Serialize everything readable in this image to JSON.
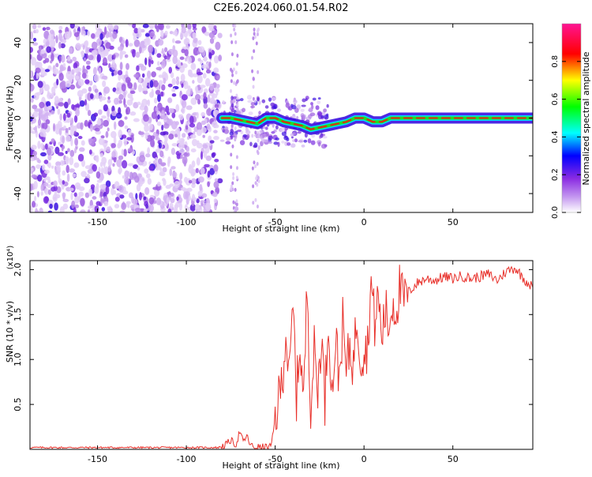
{
  "title": "C2E6.2024.060.01.54.R02",
  "chart_data": [
    {
      "type": "heatmap",
      "xlabel": "Height of straight line (km)",
      "ylabel": "Frequency (Hz)",
      "xlim": [
        -188,
        95
      ],
      "ylim": [
        -50,
        50
      ],
      "x_ticks": [
        -150,
        -100,
        -50,
        0,
        50
      ],
      "y_ticks": [
        -40,
        -20,
        0,
        20,
        40
      ],
      "ridge": {
        "x": [
          -80,
          -75,
          -70,
          -65,
          -60,
          -55,
          -50,
          -45,
          -40,
          -35,
          -30,
          -25,
          -20,
          -15,
          -10,
          -5,
          0,
          5,
          10,
          15,
          20,
          40,
          60,
          80,
          95
        ],
        "freq": [
          0,
          0,
          -1,
          -2,
          -3,
          0,
          0,
          -2,
          -3,
          -4,
          -6,
          -5,
          -4,
          -3,
          -2,
          0,
          0,
          -2,
          -2,
          0,
          0,
          0,
          0,
          0,
          0
        ]
      },
      "colorbar": {
        "label": "Normalized spectral amplitude",
        "range": [
          0,
          1
        ],
        "ticks": [
          "0.0",
          "0.2",
          "0.4",
          "0.6",
          "0.8"
        ],
        "colors": [
          "#ffffff",
          "#8a2be2",
          "#0000ff",
          "#00ffff",
          "#00ff00",
          "#ffff00",
          "#ff0000",
          "#ff1493"
        ]
      }
    },
    {
      "type": "line",
      "xlabel": "Height of straight line (km)",
      "ylabel": "SNR (10 * v/v)",
      "scale_label": "(x10⁴)",
      "xlim": [
        -188,
        95
      ],
      "ylim": [
        0,
        2.1
      ],
      "x_ticks": [
        -150,
        -100,
        -50,
        0,
        50
      ],
      "y_ticks": [
        "0.5",
        "1.0",
        "1.5",
        "2.0"
      ],
      "line_color": "#e8302a",
      "series": [
        {
          "x": [
            -188,
            -150,
            -120,
            -100,
            -82,
            -78,
            -75,
            -72,
            -70,
            -68,
            -66,
            -64,
            -62,
            -60,
            -58,
            -56,
            -54,
            -52,
            -50,
            -48,
            -46,
            -44,
            -42,
            -40,
            -38,
            -36,
            -34,
            -32,
            -30,
            -28,
            -26,
            -24,
            -22,
            -20,
            -18,
            -16,
            -14,
            -12,
            -10,
            -8,
            -6,
            -4,
            -2,
            0,
            2,
            4,
            6,
            8,
            10,
            12,
            14,
            16,
            18,
            20,
            22,
            25,
            30,
            35,
            40,
            45,
            50,
            55,
            60,
            65,
            70,
            75,
            80,
            85,
            90,
            95
          ],
          "y": [
            0.02,
            0.02,
            0.02,
            0.02,
            0.02,
            0.05,
            0.1,
            0.05,
            0.2,
            0.08,
            0.15,
            0.05,
            0.02,
            0.03,
            0.02,
            0.03,
            0.02,
            0.05,
            0.35,
            0.55,
            0.8,
            1.3,
            0.75,
            1.6,
            0.6,
            1.2,
            0.5,
            1.85,
            0.5,
            1.1,
            0.65,
            1.3,
            0.55,
            1.5,
            0.6,
            1.25,
            0.8,
            1.4,
            0.85,
            1.15,
            0.95,
            1.5,
            1.05,
            1.1,
            1.15,
            1.85,
            1.4,
            1.7,
            1.25,
            1.55,
            1.35,
            1.65,
            1.55,
            1.8,
            1.65,
            1.75,
            1.85,
            1.9,
            1.88,
            1.92,
            1.9,
            1.93,
            1.9,
            1.92,
            1.95,
            1.88,
            1.98,
            2.02,
            1.9,
            1.8
          ]
        }
      ]
    }
  ]
}
